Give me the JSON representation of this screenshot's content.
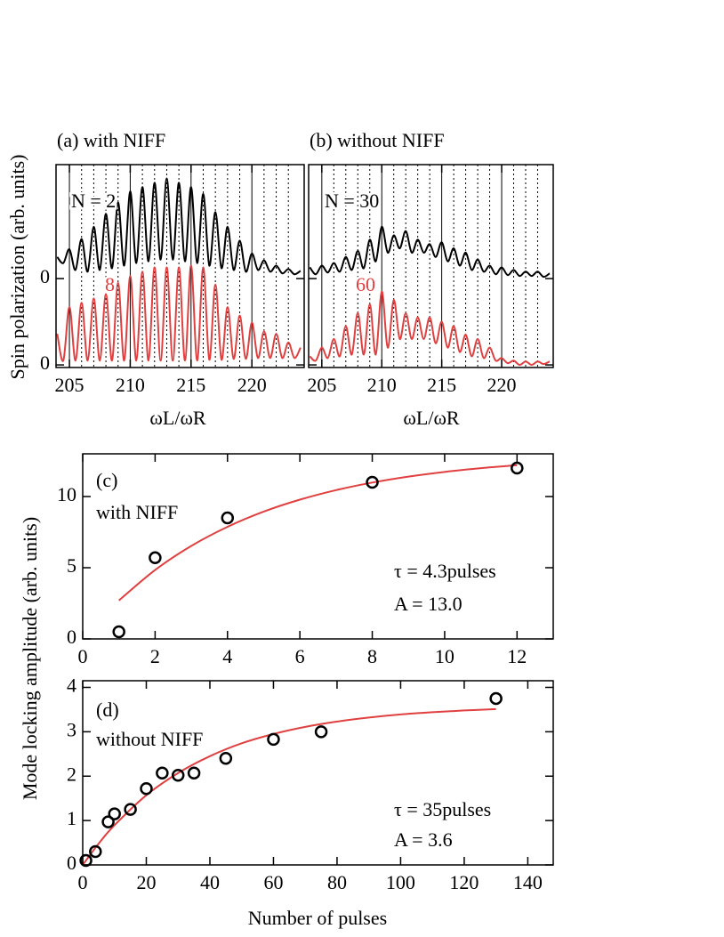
{
  "chart_data": [
    {
      "type": "line",
      "title": "(a) with NIFF",
      "ylabel": "Spin polarization (arb. units)",
      "xlabel": "ωL/ωR",
      "xlim": [
        203.9,
        224.3
      ],
      "xticks": [
        205,
        210,
        215,
        220
      ],
      "grid": true,
      "minor_xgrid": [
        206,
        207,
        208,
        209,
        211,
        212,
        213,
        214,
        216,
        217,
        218,
        219,
        221,
        222,
        223
      ],
      "ylim": [
        -0.03,
        2.32
      ],
      "yticks": [
        {
          "value": 0,
          "label": "0"
        },
        {
          "value": 1,
          "label": "0"
        }
      ],
      "x": [
        204,
        204.5,
        205,
        205.5,
        206,
        206.5,
        207,
        207.5,
        208,
        208.5,
        209,
        209.5,
        210,
        210.5,
        211,
        211.5,
        212,
        212.5,
        213,
        213.5,
        214,
        214.5,
        215,
        215.5,
        216,
        216.5,
        217,
        217.5,
        218,
        218.5,
        219,
        219.5,
        220,
        220.5,
        221,
        221.5,
        222,
        222.5,
        223,
        223.5,
        224
      ],
      "series": [
        {
          "name": "N = 2",
          "color": "#000000",
          "values": [
            1.25,
            1.18,
            1.34,
            1.1,
            1.46,
            1.08,
            1.6,
            1.1,
            1.75,
            1.12,
            1.88,
            1.15,
            2.01,
            1.18,
            2.06,
            1.2,
            2.11,
            1.22,
            2.16,
            1.22,
            2.11,
            1.2,
            2.06,
            1.18,
            1.98,
            1.15,
            1.77,
            1.12,
            1.6,
            1.1,
            1.44,
            1.08,
            1.29,
            1.1,
            1.21,
            1.08,
            1.15,
            1.06,
            1.11,
            1.05,
            1.09
          ]
        },
        {
          "name": "8",
          "color": "#e04040",
          "values": [
            0.36,
            0.05,
            0.67,
            0.05,
            0.72,
            0.05,
            0.77,
            0.05,
            0.82,
            0.05,
            0.95,
            0.05,
            1.03,
            0.05,
            1.08,
            0.05,
            1.13,
            0.05,
            1.13,
            0.05,
            1.13,
            0.05,
            1.15,
            0.05,
            1.13,
            0.06,
            0.93,
            0.06,
            0.67,
            0.07,
            0.57,
            0.07,
            0.49,
            0.08,
            0.39,
            0.08,
            0.36,
            0.08,
            0.26,
            0.08,
            0.2
          ]
        }
      ]
    },
    {
      "type": "line",
      "title": "(b) without NIFF",
      "xlabel": "ωL/ωR",
      "xlim": [
        203.9,
        224.3
      ],
      "xticks": [
        205,
        210,
        215,
        220
      ],
      "grid": true,
      "minor_xgrid": [
        206,
        207,
        208,
        209,
        211,
        212,
        213,
        214,
        216,
        217,
        218,
        219,
        221,
        222,
        223
      ],
      "ylim": [
        -0.03,
        2.32
      ],
      "yticks": [
        0,
        1
      ],
      "tick_labels_y": false,
      "x": [
        204,
        204.5,
        205,
        205.5,
        206,
        206.5,
        207,
        207.5,
        208,
        208.5,
        209,
        209.5,
        210,
        210.5,
        211,
        211.5,
        212,
        212.5,
        213,
        213.5,
        214,
        214.5,
        215,
        215.5,
        216,
        216.5,
        217,
        217.5,
        218,
        218.5,
        219,
        219.5,
        220,
        220.5,
        221,
        221.5,
        222,
        222.5,
        223,
        223.5,
        224
      ],
      "series": [
        {
          "name": "N = 30",
          "color": "#000000",
          "values": [
            1.13,
            1.05,
            1.15,
            1.07,
            1.18,
            1.08,
            1.25,
            1.1,
            1.32,
            1.12,
            1.45,
            1.2,
            1.6,
            1.3,
            1.5,
            1.35,
            1.55,
            1.3,
            1.45,
            1.3,
            1.4,
            1.25,
            1.42,
            1.2,
            1.35,
            1.15,
            1.3,
            1.1,
            1.22,
            1.08,
            1.15,
            1.05,
            1.13,
            1.04,
            1.1,
            1.03,
            1.08,
            1.03,
            1.08,
            1.02,
            1.06
          ]
        },
        {
          "name": "60",
          "color": "#e04040",
          "values": [
            0.1,
            0.05,
            0.2,
            0.08,
            0.3,
            0.1,
            0.45,
            0.12,
            0.6,
            0.12,
            0.7,
            0.12,
            0.85,
            0.2,
            0.75,
            0.3,
            0.6,
            0.3,
            0.55,
            0.3,
            0.55,
            0.25,
            0.5,
            0.2,
            0.45,
            0.15,
            0.35,
            0.1,
            0.3,
            0.08,
            0.2,
            0.05,
            0.08,
            0.02,
            0.05,
            0.0,
            0.04,
            0.0,
            0.04,
            0.01,
            0.04
          ]
        }
      ]
    },
    {
      "type": "scatter",
      "ylabel": "Mode locking amplitude (arb. units)",
      "xlim": [
        0,
        13
      ],
      "xticks": [
        0,
        2,
        4,
        6,
        8,
        10,
        12
      ],
      "ylim": [
        0,
        13
      ],
      "yticks": [
        0,
        5,
        10
      ],
      "annotations": [
        "(c)",
        "with NIFF",
        "τ = 4.3pulses",
        "A = 13.0"
      ],
      "points": {
        "color": "#000000",
        "x": [
          1,
          2,
          4,
          8,
          12
        ],
        "values": [
          0.5,
          5.7,
          8.5,
          11,
          12
        ]
      },
      "fit": {
        "color": "#e04040",
        "x": [
          1,
          2,
          3,
          4,
          5,
          6,
          7,
          8,
          9,
          10,
          11,
          12
        ],
        "values": [
          2.7,
          4.84,
          6.53,
          7.87,
          8.94,
          9.78,
          10.45,
          10.98,
          11.4,
          11.73,
          11.99,
          12.2
        ]
      }
    },
    {
      "type": "scatter",
      "xlabel": "Number of pulses",
      "xlim": [
        0,
        148
      ],
      "xticks": [
        0,
        20,
        40,
        60,
        80,
        100,
        120,
        140
      ],
      "ylim": [
        0,
        4.15
      ],
      "yticks": [
        0,
        1,
        2,
        3,
        4
      ],
      "annotations": [
        "(d)",
        "without NIFF",
        "τ = 35pulses",
        "A = 3.6"
      ],
      "points": {
        "color": "#000000",
        "x": [
          1,
          4,
          8,
          10,
          15,
          20,
          25,
          30,
          35,
          45,
          60,
          75,
          130
        ],
        "values": [
          0.1,
          0.3,
          0.97,
          1.15,
          1.25,
          1.72,
          2.07,
          2.02,
          2.07,
          2.4,
          2.83,
          3.0,
          3.75
        ]
      },
      "fit": {
        "color": "#e04040",
        "x": [
          0,
          5,
          10,
          20,
          30,
          40,
          50,
          60,
          70,
          80,
          90,
          100,
          110,
          120,
          130
        ],
        "values": [
          0,
          0.479,
          0.895,
          1.57,
          2.07,
          2.45,
          2.74,
          2.95,
          3.11,
          3.23,
          3.32,
          3.39,
          3.44,
          3.48,
          3.51
        ]
      }
    }
  ]
}
